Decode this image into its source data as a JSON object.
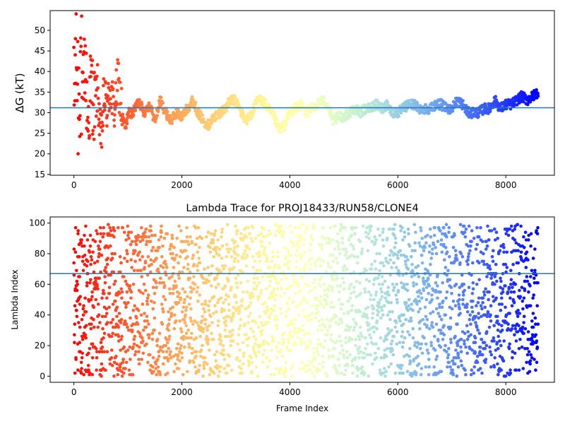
{
  "chart_data": [
    {
      "type": "scatter",
      "title": "",
      "xlabel": "",
      "ylabel": "ΔG (kT)",
      "xlim": [
        -440,
        8900
      ],
      "ylim": [
        14.8,
        54.8
      ],
      "xticks": [
        0,
        2000,
        4000,
        6000,
        8000
      ],
      "yticks": [
        15,
        20,
        25,
        30,
        35,
        40,
        45,
        50
      ],
      "hline": 31.2,
      "colormap": "rainbow",
      "color_by": "x",
      "x_range": [
        0,
        8600
      ],
      "grid": false,
      "legend": "none",
      "trace": [
        [
          0,
          29
        ],
        [
          40,
          48
        ],
        [
          80,
          33
        ],
        [
          120,
          45
        ],
        [
          160,
          30
        ],
        [
          200,
          44
        ],
        [
          260,
          27
        ],
        [
          320,
          38
        ],
        [
          380,
          31
        ],
        [
          440,
          36
        ],
        [
          500,
          22
        ],
        [
          560,
          34
        ],
        [
          620,
          31
        ],
        [
          680,
          36
        ],
        [
          740,
          30
        ],
        [
          820,
          38
        ],
        [
          900,
          29
        ],
        [
          960,
          26
        ],
        [
          1000,
          30
        ],
        [
          1100,
          30
        ],
        [
          1200,
          33
        ],
        [
          1300,
          30
        ],
        [
          1400,
          32
        ],
        [
          1500,
          28
        ],
        [
          1600,
          33
        ],
        [
          1700,
          30
        ],
        [
          1800,
          28
        ],
        [
          1900,
          30
        ],
        [
          2000,
          29
        ],
        [
          2100,
          31
        ],
        [
          2200,
          33
        ],
        [
          2300,
          30
        ],
        [
          2400,
          28
        ],
        [
          2500,
          27
        ],
        [
          2600,
          29
        ],
        [
          2700,
          30
        ],
        [
          2800,
          31
        ],
        [
          2900,
          33
        ],
        [
          3000,
          33
        ],
        [
          3100,
          30
        ],
        [
          3200,
          28
        ],
        [
          3300,
          30
        ],
        [
          3400,
          33
        ],
        [
          3500,
          33
        ],
        [
          3600,
          31
        ],
        [
          3700,
          29
        ],
        [
          3800,
          26
        ],
        [
          3900,
          27
        ],
        [
          4000,
          30
        ],
        [
          4100,
          31
        ],
        [
          4200,
          32
        ],
        [
          4300,
          30
        ],
        [
          4400,
          31
        ],
        [
          4500,
          32
        ],
        [
          4600,
          33
        ],
        [
          4700,
          32
        ],
        [
          4800,
          28
        ],
        [
          4900,
          29
        ],
        [
          5000,
          29
        ],
        [
          5100,
          30
        ],
        [
          5200,
          31
        ],
        [
          5300,
          30
        ],
        [
          5400,
          31
        ],
        [
          5500,
          31
        ],
        [
          5600,
          32
        ],
        [
          5700,
          31
        ],
        [
          5800,
          32
        ],
        [
          5900,
          30
        ],
        [
          6000,
          30
        ],
        [
          6100,
          31
        ],
        [
          6200,
          32
        ],
        [
          6300,
          32
        ],
        [
          6400,
          31
        ],
        [
          6500,
          31
        ],
        [
          6600,
          31
        ],
        [
          6700,
          32
        ],
        [
          6800,
          32
        ],
        [
          6900,
          31
        ],
        [
          7000,
          31
        ],
        [
          7100,
          33
        ],
        [
          7200,
          32
        ],
        [
          7300,
          30
        ],
        [
          7400,
          30
        ],
        [
          7500,
          30
        ],
        [
          7600,
          31
        ],
        [
          7700,
          31
        ],
        [
          7800,
          33
        ],
        [
          7900,
          31
        ],
        [
          8000,
          32
        ],
        [
          8100,
          32
        ],
        [
          8200,
          33
        ],
        [
          8300,
          34
        ],
        [
          8400,
          33
        ],
        [
          8500,
          34
        ],
        [
          8600,
          35
        ]
      ]
    },
    {
      "type": "scatter",
      "title": "Lambda Trace for PROJ18433/RUN58/CLONE4",
      "xlabel": "Frame Index",
      "ylabel": "Lambda Index",
      "xlim": [
        -440,
        8900
      ],
      "ylim": [
        -4,
        104
      ],
      "xticks": [
        0,
        2000,
        4000,
        6000,
        8000
      ],
      "yticks": [
        0,
        20,
        40,
        60,
        80,
        100
      ],
      "hline": 67,
      "colormap": "rainbow",
      "color_by": "x",
      "x_range": [
        0,
        8600
      ],
      "y_range": [
        0,
        99
      ],
      "grid": false,
      "legend": "none"
    }
  ]
}
